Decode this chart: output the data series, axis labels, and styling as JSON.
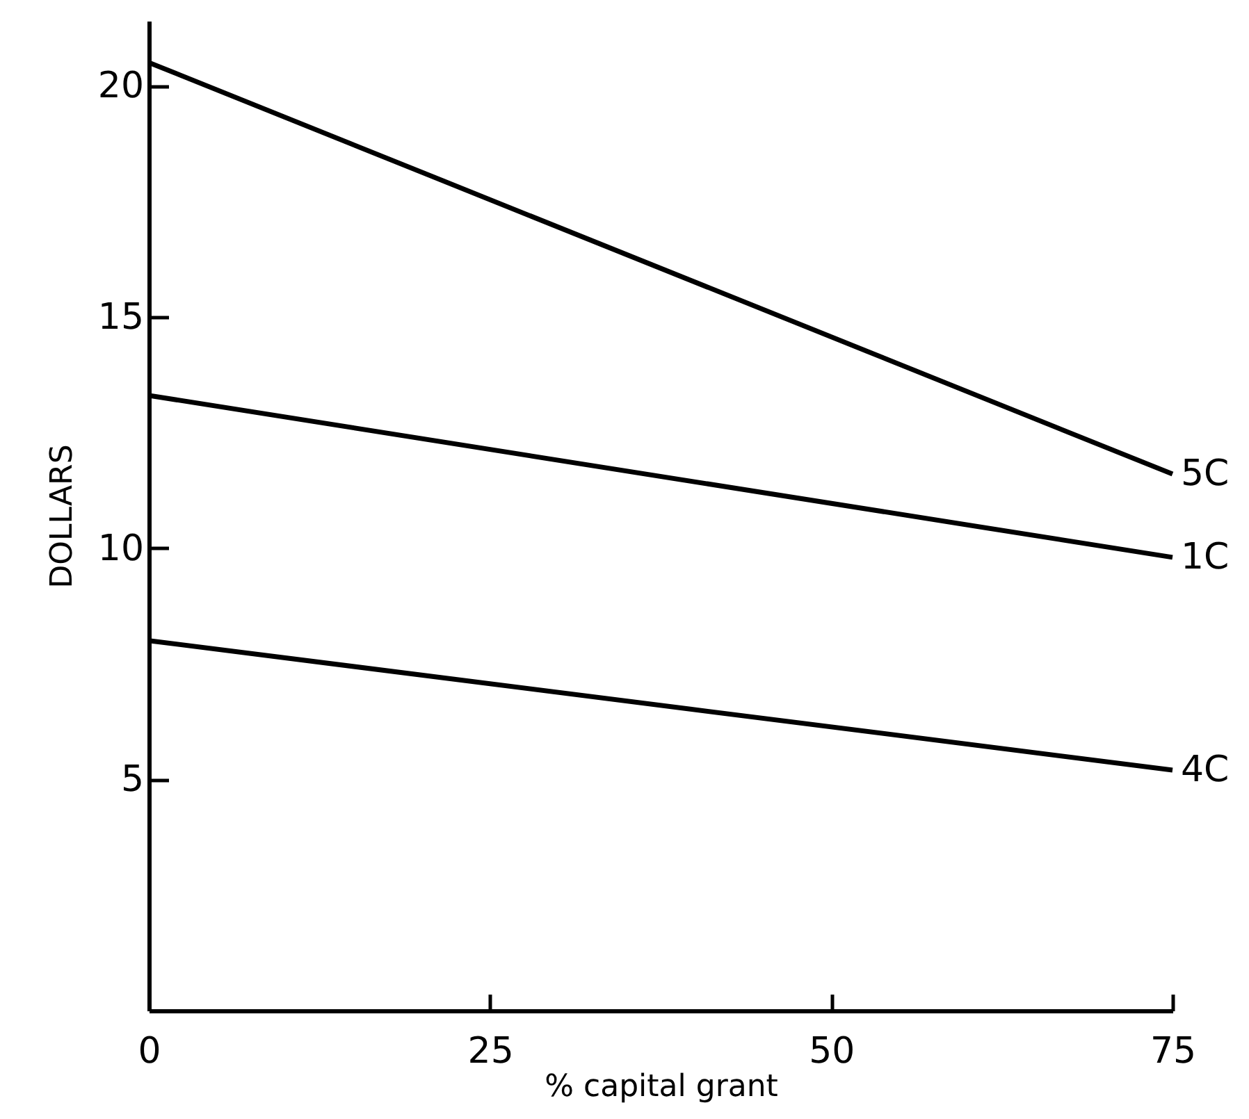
{
  "chart_data": {
    "type": "line",
    "xlabel": "% capital grant",
    "ylabel": "DOLLARS",
    "x": [
      0,
      75
    ],
    "series": [
      {
        "name": "5C",
        "color": "#000000",
        "values": [
          20.5,
          11.6
        ]
      },
      {
        "name": "1C",
        "color": "#000000",
        "values": [
          13.3,
          9.8
        ]
      },
      {
        "name": "4C",
        "color": "#000000",
        "values": [
          8.0,
          5.2
        ]
      }
    ],
    "xlim": [
      0,
      75
    ],
    "xticks": [
      0,
      25,
      50,
      75
    ],
    "ylim": [
      0,
      21.4
    ],
    "yticks": [
      5,
      10,
      15,
      20
    ],
    "grid": false,
    "marker": "none",
    "line_style": "solid"
  }
}
